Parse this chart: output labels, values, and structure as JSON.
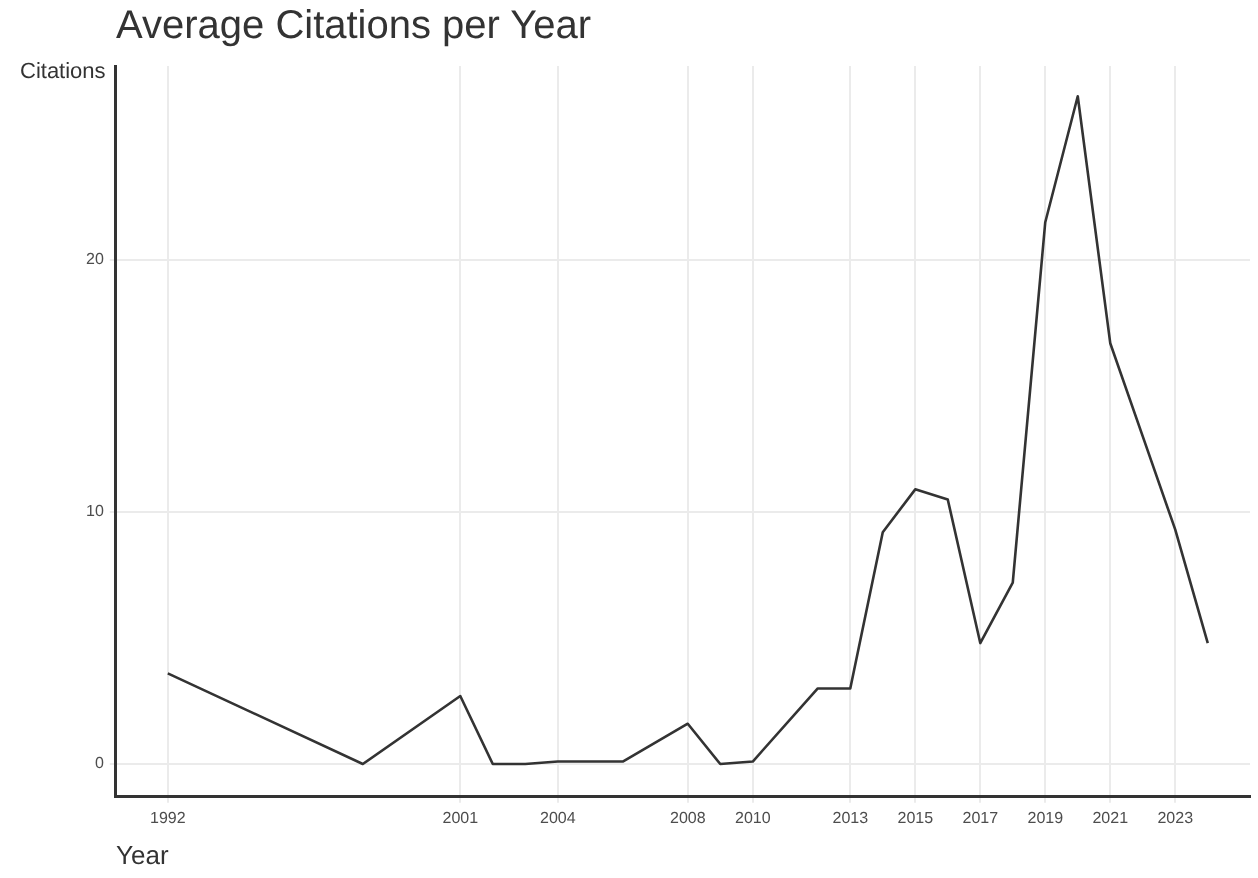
{
  "chart_data": {
    "type": "line",
    "title": "Average Citations per Year",
    "xlabel": "Year",
    "ylabel": "Citations",
    "x": [
      1992,
      1998,
      2001,
      2002,
      2003,
      2004,
      2006,
      2008,
      2009,
      2010,
      2012,
      2013,
      2014,
      2015,
      2016,
      2017,
      2018,
      2019,
      2020,
      2021,
      2022,
      2023,
      2024
    ],
    "series": [
      {
        "color": "#333333",
        "values": [
          3.6,
          0,
          2.7,
          0,
          0,
          0.1,
          0.1,
          1.6,
          0,
          0.1,
          3.0,
          3.0,
          9.2,
          10.9,
          10.5,
          4.8,
          7.2,
          21.5,
          26.5,
          16.7,
          13.0,
          9.3,
          4.8
        ]
      }
    ],
    "xlim": [
      1990.4,
      2025.3
    ],
    "xticks": [
      1992,
      2001,
      2004,
      2008,
      2010,
      2013,
      2015,
      2017,
      2019,
      2021,
      2023
    ],
    "ylim": [
      -1.3,
      27.7
    ],
    "yticks": [
      0,
      10,
      20
    ],
    "grid": true,
    "legend": false,
    "marker": "none",
    "line_style": "solid"
  }
}
